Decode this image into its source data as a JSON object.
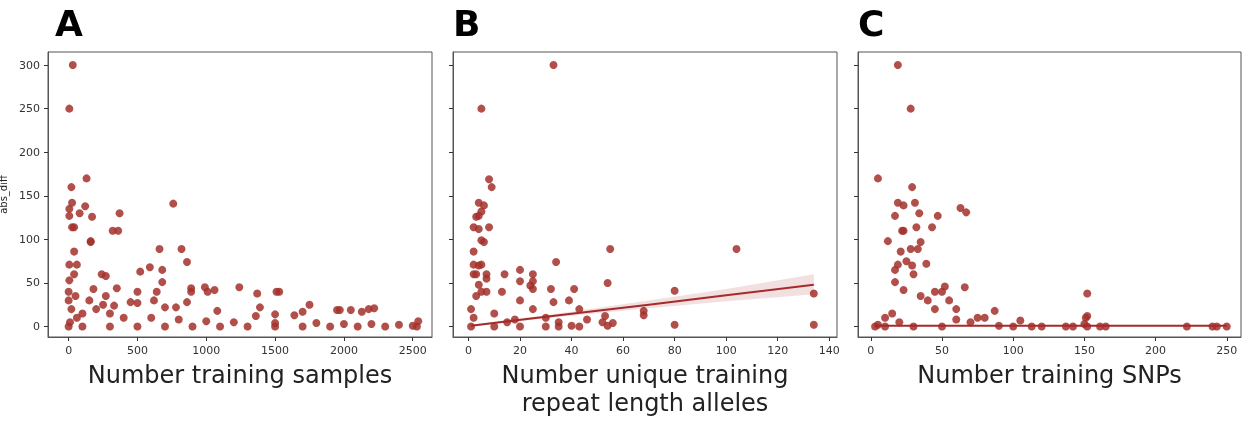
{
  "chart_data": [
    {
      "type": "scatter",
      "title": "A",
      "xlabel": "Number training samples",
      "ylabel": "abs_diff",
      "xlim": [
        -150,
        2640
      ],
      "xticks": [
        0,
        500,
        1000,
        1500,
        2000,
        2500
      ],
      "ylim": [
        -12,
        315
      ],
      "yticks": [
        0,
        50,
        100,
        150,
        200,
        250,
        300
      ],
      "grid": false,
      "series": [
        {
          "marker": "circle",
          "color": "#a3302b",
          "x": [
            30,
            5,
            130,
            20,
            25,
            5,
            120,
            5,
            80,
            170,
            370,
            25,
            40,
            320,
            360,
            160,
            160,
            40,
            5,
            60,
            40,
            5,
            240,
            270,
            660,
            820,
            860,
            520,
            590,
            680,
            680,
            760,
            180,
            350,
            500,
            640,
            620,
            890,
            890,
            990,
            1010,
            1060,
            1240,
            1370,
            1390,
            1510,
            1530,
            1080,
            860,
            700,
            780,
            450,
            500,
            330,
            270,
            1500,
            1640,
            1700,
            1750,
            1950,
            1970,
            2050,
            2130,
            2180,
            2220,
            1360,
            2540,
            0,
            0,
            20,
            50,
            100,
            200,
            300,
            400,
            600,
            800,
            1000,
            1200,
            1500,
            1800,
            2000,
            2200,
            2400,
            2500,
            0,
            100,
            300,
            500,
            700,
            900,
            1100,
            1300,
            1500,
            1700,
            1900,
            2100,
            2300,
            2530,
            150,
            250,
            60,
            10
          ],
          "values": [
            300,
            250,
            170,
            160,
            142,
            135,
            138,
            127,
            130,
            126,
            130,
            114,
            114,
            110,
            110,
            98,
            97,
            86,
            71,
            71,
            60,
            53,
            60,
            58,
            89,
            89,
            74,
            63,
            68,
            65,
            51,
            141,
            43,
            44,
            40,
            40,
            30,
            44,
            40,
            45,
            40,
            42,
            45,
            38,
            22,
            40,
            40,
            18,
            28,
            22,
            22,
            28,
            27,
            24,
            35,
            14,
            13,
            17,
            25,
            19,
            19,
            19,
            17,
            20,
            21,
            12,
            6,
            40,
            30,
            20,
            35,
            15,
            20,
            15,
            10,
            10,
            8,
            6,
            5,
            4,
            4,
            3,
            3,
            2,
            1,
            0,
            0,
            0,
            0,
            0,
            0,
            0,
            0,
            0,
            0,
            0,
            0,
            0,
            0,
            30,
            25,
            10,
            5
          ]
        }
      ]
    },
    {
      "type": "scatter",
      "title": "B",
      "xlabel": "Number unique training\nrepeat length alleles",
      "xlim": [
        -6,
        143
      ],
      "xticks": [
        0,
        20,
        40,
        60,
        80,
        100,
        120,
        140
      ],
      "ylim": [
        -12,
        315
      ],
      "yticks": [
        0,
        50,
        100,
        150,
        200,
        250,
        300
      ],
      "tick_labels": "x",
      "grid": false,
      "series": [
        {
          "marker": "circle",
          "color": "#a3302b",
          "x": [
            33,
            5,
            8,
            9,
            4,
            6,
            5,
            4,
            3,
            2,
            4,
            8,
            5,
            6,
            2,
            2,
            4,
            5,
            2,
            3,
            7,
            7,
            34,
            20,
            25,
            55,
            104,
            54,
            20,
            25,
            24,
            25,
            32,
            41,
            13,
            14,
            80,
            134,
            39,
            33,
            68,
            68,
            80,
            134,
            43,
            46,
            53,
            52,
            56,
            54,
            40,
            43,
            30,
            35,
            25,
            20,
            18,
            10,
            15,
            5,
            3,
            1,
            2,
            1,
            10,
            20,
            30,
            35,
            4,
            7
          ],
          "values": [
            300,
            250,
            169,
            160,
            142,
            139,
            132,
            127,
            126,
            114,
            112,
            114,
            99,
            97,
            86,
            71,
            70,
            71,
            60,
            60,
            60,
            55,
            74,
            65,
            60,
            89,
            89,
            50,
            52,
            52,
            47,
            43,
            43,
            43,
            40,
            60,
            41,
            38,
            30,
            28,
            18,
            13,
            2,
            2,
            20,
            8,
            12,
            5,
            4,
            1,
            1,
            0,
            10,
            5,
            20,
            30,
            8,
            15,
            5,
            40,
            35,
            20,
            10,
            0,
            0,
            0,
            0,
            0,
            48,
            40
          ]
        },
        {
          "type": "line",
          "marker": "none",
          "color": "#a52a2a",
          "line_style": "solid",
          "x": [
            1,
            35,
            70,
            100,
            134
          ],
          "values": [
            1,
            13,
            25,
            36,
            48
          ],
          "lower": [
            0,
            11,
            21,
            29,
            37
          ],
          "upper": [
            2,
            15,
            30,
            43,
            60
          ]
        }
      ]
    },
    {
      "type": "scatter",
      "title": "C",
      "xlabel": "Number training SNPs",
      "xlim": [
        -9,
        260
      ],
      "xticks": [
        0,
        50,
        100,
        150,
        200,
        250
      ],
      "ylim": [
        -12,
        315
      ],
      "yticks": [
        0,
        50,
        100,
        150,
        200,
        250,
        300
      ],
      "tick_labels": "x",
      "grid": false,
      "series": [
        {
          "marker": "circle",
          "color": "#a3302b",
          "x": [
            19,
            28,
            5,
            29,
            19,
            31,
            23,
            17,
            34,
            47,
            63,
            67,
            22,
            23,
            32,
            43,
            12,
            35,
            21,
            28,
            33,
            19,
            29,
            39,
            25,
            17,
            30,
            17,
            23,
            52,
            66,
            152,
            45,
            50,
            40,
            55,
            35,
            87,
            60,
            75,
            80,
            105,
            113,
            120,
            137,
            142,
            151,
            152,
            150,
            161,
            165,
            222,
            240,
            243,
            250,
            100,
            90,
            70,
            10,
            15,
            5,
            3,
            50,
            30,
            20,
            60,
            45,
            10,
            152
          ],
          "values": [
            300,
            250,
            170,
            160,
            142,
            142,
            139,
            127,
            130,
            127,
            136,
            131,
            110,
            110,
            114,
            114,
            98,
            97,
            86,
            89,
            89,
            71,
            70,
            72,
            75,
            65,
            60,
            51,
            42,
            46,
            45,
            38,
            40,
            40,
            30,
            30,
            35,
            18,
            20,
            10,
            10,
            7,
            0,
            0,
            0,
            0,
            10,
            12,
            3,
            0,
            0,
            0,
            0,
            0,
            0,
            0,
            1,
            5,
            10,
            15,
            2,
            0,
            0,
            0,
            5,
            8,
            20,
            0,
            0
          ]
        },
        {
          "type": "line",
          "marker": "none",
          "color": "#a52a2a",
          "line_style": "solid",
          "x": [
            3,
            250
          ],
          "values": [
            1,
            1
          ]
        }
      ]
    }
  ]
}
